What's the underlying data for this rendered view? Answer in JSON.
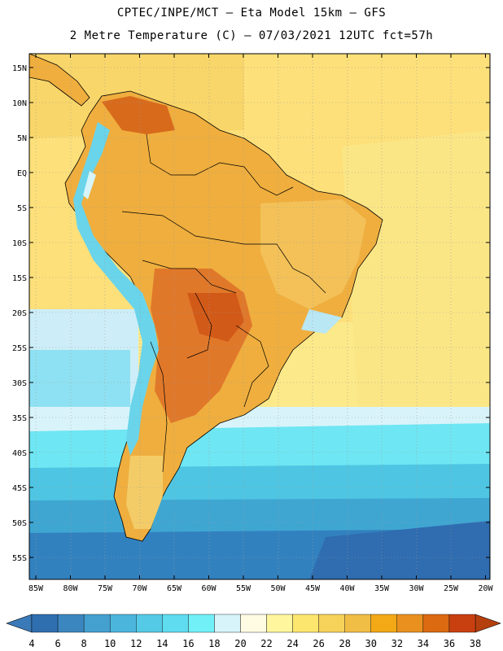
{
  "header": {
    "line1": "CPTEC/INPE/MCT –  Eta Model 15km – GFS",
    "line2": "2 Metre Temperature (C) – 07/03/2021 12UTC fct=57h"
  },
  "axes": {
    "lat_labels": [
      "15N",
      "10N",
      "5N",
      "EQ",
      "5S",
      "10S",
      "15S",
      "20S",
      "25S",
      "30S",
      "35S",
      "40S",
      "45S",
      "50S",
      "55S"
    ],
    "lon_labels": [
      "85W",
      "80W",
      "75W",
      "70W",
      "65W",
      "60W",
      "55W",
      "50W",
      "45W",
      "40W",
      "35W",
      "30W",
      "25W",
      "20W"
    ]
  },
  "colorbar": {
    "labels": [
      "4",
      "6",
      "8",
      "10",
      "12",
      "14",
      "16",
      "18",
      "20",
      "22",
      "24",
      "26",
      "28",
      "30",
      "32",
      "34",
      "36",
      "38"
    ],
    "colors": [
      "#2f6fb0",
      "#3c86bf",
      "#44a0cf",
      "#4cb5dc",
      "#55cae6",
      "#5fdcef",
      "#72f0f7",
      "#d6f4fa",
      "#fffbe3",
      "#fff69e",
      "#fce66e",
      "#f6d25a",
      "#f0bd45",
      "#f3a816",
      "#e9901f",
      "#dc6a10",
      "#c94010"
    ],
    "min_color": "#3a7ab8",
    "max_color": "#b5400e"
  }
}
